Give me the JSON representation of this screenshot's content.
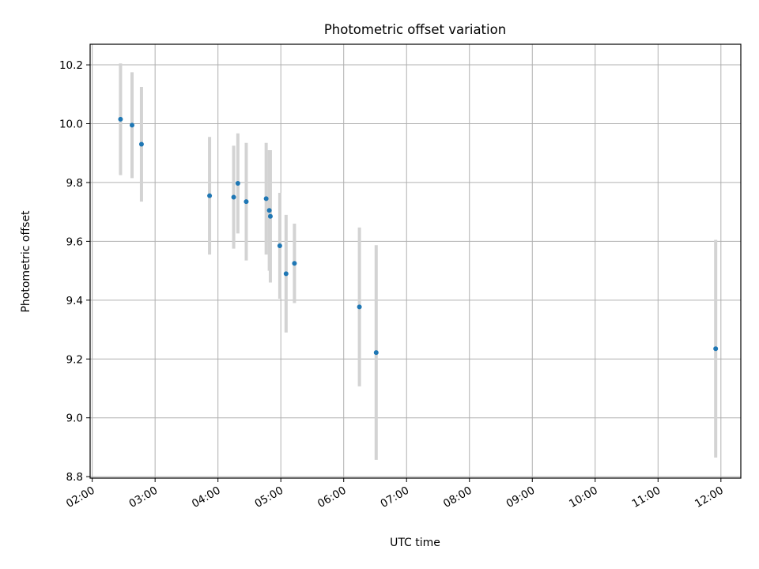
{
  "chart_data": {
    "type": "scatter",
    "title": "Photometric offset variation",
    "xlabel": "UTC time",
    "ylabel": "Photometric offset",
    "x_axis_kind": "time",
    "xlim": [
      "01:58",
      "12:19"
    ],
    "ylim": [
      8.795,
      10.27
    ],
    "x_ticks": [
      "02:00",
      "03:00",
      "04:00",
      "05:00",
      "06:00",
      "07:00",
      "08:00",
      "09:00",
      "10:00",
      "11:00",
      "12:00"
    ],
    "y_ticks": [
      "8.8",
      "9.0",
      "9.2",
      "9.4",
      "9.6",
      "9.8",
      "10.0",
      "10.2"
    ],
    "grid": true,
    "marker_color": "#1f77b4",
    "errorbar_color": "#d3d3d3",
    "points": [
      {
        "x": "02:27",
        "y": 10.015,
        "err": 0.19
      },
      {
        "x": "02:38",
        "y": 9.995,
        "err": 0.18
      },
      {
        "x": "02:47",
        "y": 9.93,
        "err": 0.195
      },
      {
        "x": "03:52",
        "y": 9.755,
        "err": 0.2
      },
      {
        "x": "04:15",
        "y": 9.75,
        "err": 0.175
      },
      {
        "x": "04:19",
        "y": 9.797,
        "err": 0.17
      },
      {
        "x": "04:27",
        "y": 9.735,
        "err": 0.2
      },
      {
        "x": "04:46",
        "y": 9.745,
        "err": 0.19
      },
      {
        "x": "04:49",
        "y": 9.705,
        "err": 0.205
      },
      {
        "x": "04:50",
        "y": 9.685,
        "err": 0.225
      },
      {
        "x": "04:59",
        "y": 9.585,
        "err": 0.18
      },
      {
        "x": "05:05",
        "y": 9.49,
        "err": 0.2
      },
      {
        "x": "05:13",
        "y": 9.525,
        "err": 0.135
      },
      {
        "x": "06:15",
        "y": 9.377,
        "err": 0.27
      },
      {
        "x": "06:31",
        "y": 9.222,
        "err": 0.365
      },
      {
        "x": "11:55",
        "y": 9.235,
        "err": 0.37
      }
    ]
  }
}
